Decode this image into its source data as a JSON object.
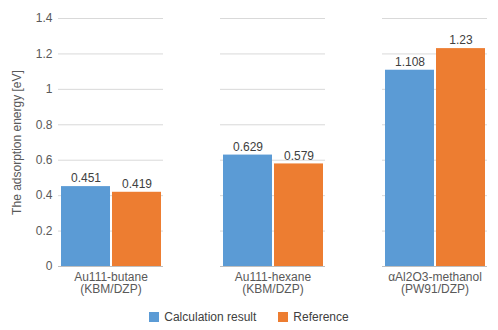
{
  "chart_data": {
    "type": "bar",
    "categories": [
      "Au111-butane\n(KBM/DZP)",
      "Au111-hexane\n(KBM/DZP)",
      "αAl2O3-methanol\n(PW91/DZP)"
    ],
    "series": [
      {
        "name": "Calculation result",
        "color": "#5b9bd5",
        "values": [
          0.451,
          0.629,
          1.108
        ]
      },
      {
        "name": "Reference",
        "color": "#ed7d31",
        "values": [
          0.419,
          0.579,
          1.23
        ]
      }
    ],
    "y_label": "The adsorption energy [eV]",
    "ylim": [
      0,
      1.4
    ],
    "yticks": [
      0,
      0.2,
      0.4,
      0.6,
      0.8,
      1,
      1.2,
      1.4
    ],
    "grid": true,
    "data_labels": true,
    "legend": "bottom"
  }
}
